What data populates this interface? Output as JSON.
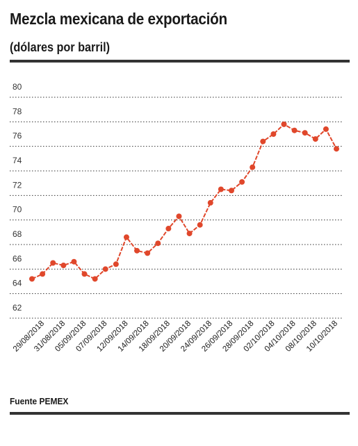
{
  "header": {
    "title": "Mezcla mexicana de exportación",
    "subtitle": "(dólares por barril)"
  },
  "footer": {
    "source": "Fuente PEMEX"
  },
  "colors": {
    "line": "#e0472b",
    "grid": "#333333",
    "rule": "#333333"
  },
  "chart_data": {
    "type": "line",
    "title": "Mezcla mexicana de exportación",
    "subtitle": "(dólares por barril)",
    "xlabel": "",
    "ylabel": "",
    "ylim": [
      62,
      80
    ],
    "yticks": [
      62,
      64,
      66,
      68,
      70,
      72,
      74,
      76,
      78,
      80
    ],
    "grid": true,
    "xtick_labels": [
      "29/08/2018",
      "31/08/2018",
      "05/09/2018",
      "07/09/2018",
      "12/09/2018",
      "14/09/2018",
      "18/09/2018",
      "20/09/2018",
      "24/09/2018",
      "26/09/2018",
      "28/09/2018",
      "02/10/2018",
      "04/10/2018",
      "08/10/2018",
      "10/10/2018"
    ],
    "series": [
      {
        "values": [
          65.2,
          65.6,
          66.5,
          66.3,
          66.6,
          65.6,
          65.2,
          66.0,
          66.4,
          68.6,
          67.5,
          67.3,
          68.1,
          69.3,
          70.3,
          68.9,
          69.6,
          71.4,
          72.5,
          72.4,
          73.1,
          74.3,
          76.4,
          77.0,
          77.8,
          77.3,
          77.1,
          76.6,
          77.4,
          75.8
        ]
      }
    ]
  }
}
